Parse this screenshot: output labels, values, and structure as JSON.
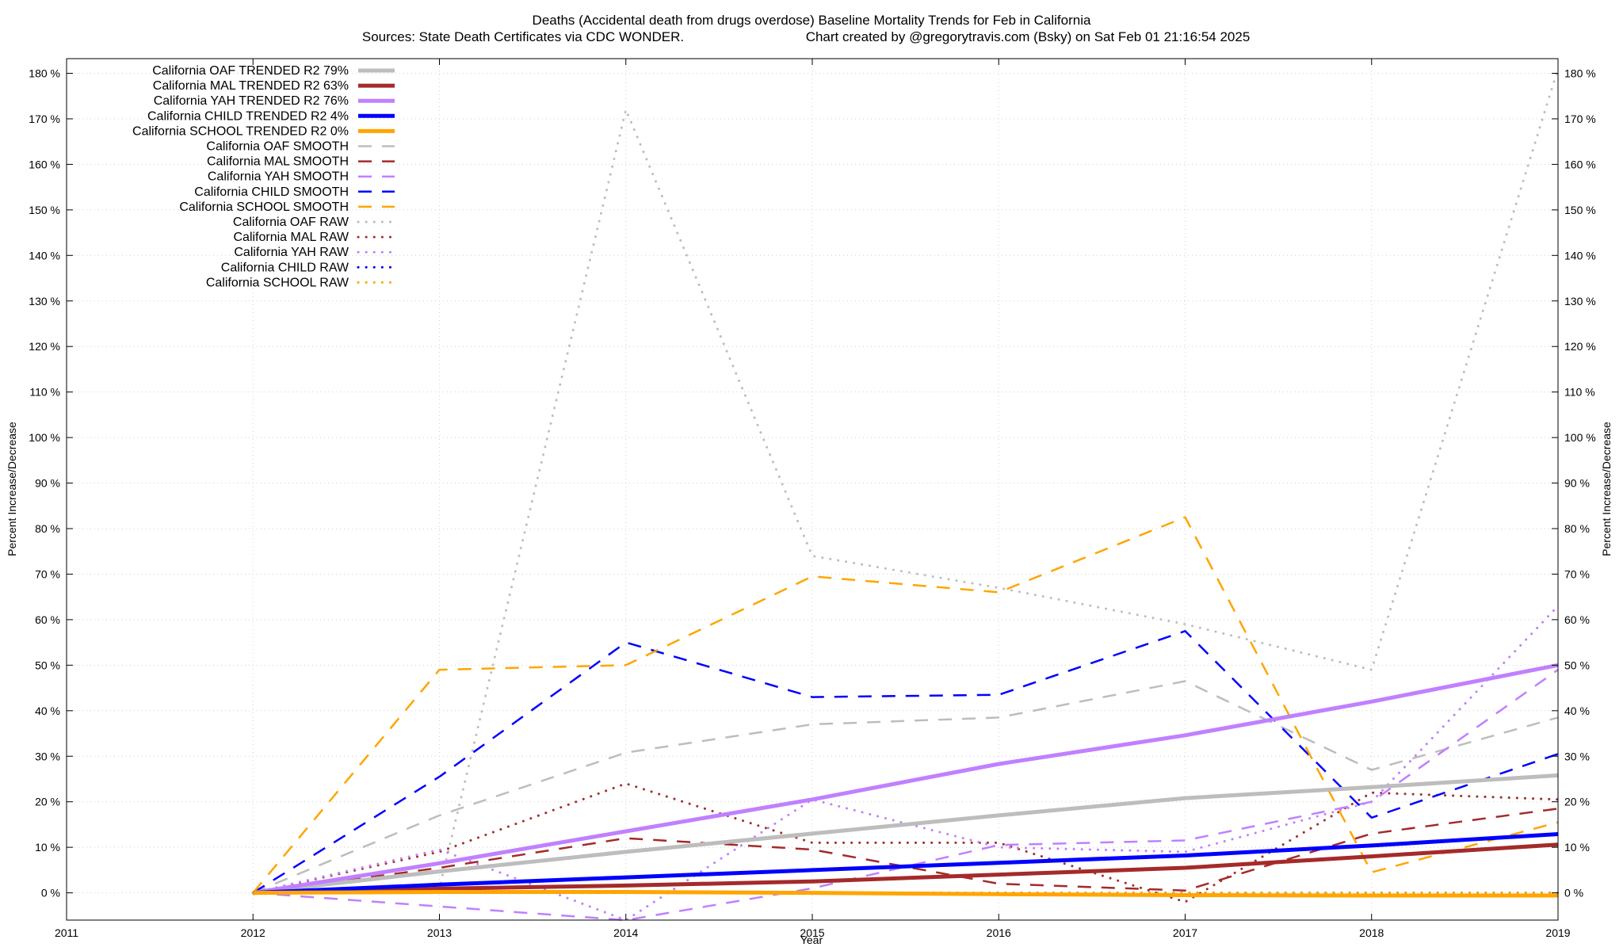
{
  "chart_data": {
    "type": "line",
    "title": "Deaths (Accidental death from drugs overdose)  Baseline Mortality Trends for Feb in California",
    "subtitle_left": "Sources: State Death Certificates via CDC WONDER.",
    "subtitle_right": "Chart created by @gregorytravis.com (Bsky) on Sat Feb 01 21:16:54 2025",
    "xlabel": "Year",
    "ylabel": "Percent Increase/Decrease",
    "y2label": "Percent Increase/Decrease",
    "xlim": [
      2011,
      2019
    ],
    "ylim": [
      -6,
      181
    ],
    "x_ticks": [
      "2011",
      "2012",
      "2013",
      "2014",
      "2015",
      "2016",
      "2017",
      "2018",
      "2019"
    ],
    "y_ticks": [
      "0 %",
      "10 %",
      "20 %",
      "30 %",
      "40 %",
      "50 %",
      "60 %",
      "70 %",
      "80 %",
      "90 %",
      "100 %",
      "110 %",
      "120 %",
      "130 %",
      "140 %",
      "150 %",
      "160 %",
      "170 %",
      "180 %"
    ],
    "y2_ticks": [
      "0 %",
      "10 %",
      "20 %",
      "30 %",
      "40 %",
      "50 %",
      "60 %",
      "70 %",
      "80 %",
      "90 %",
      "100 %",
      "110 %",
      "120 %",
      "130 %",
      "140 %",
      "150 %",
      "160 %",
      "170 %",
      "180 %"
    ],
    "grid": true,
    "legend_position": "top-left",
    "x": [
      2012,
      2013,
      2014,
      2015,
      2016,
      2017,
      2018,
      2019
    ],
    "series": [
      {
        "name": "California OAF TRENDED R2  79%",
        "style": "trend",
        "color": "#bdbdbd",
        "values": [
          0,
          4.7,
          9.0,
          13.0,
          17.0,
          20.8,
          23.2,
          25.8
        ]
      },
      {
        "name": "California MAL TRENDED R2  63%",
        "style": "trend",
        "color": "#a52a2a",
        "values": [
          0,
          0.9,
          1.6,
          2.5,
          4.0,
          5.5,
          8.0,
          10.6
        ]
      },
      {
        "name": "California YAH TRENDED R2  76%",
        "style": "trend",
        "color": "#c080ff",
        "values": [
          0,
          6.5,
          13.5,
          20.5,
          28.3,
          34.6,
          42.0,
          50.0
        ]
      },
      {
        "name": "California CHILD TRENDED R2  4%",
        "style": "trend",
        "color": "#0000ff",
        "values": [
          0,
          1.8,
          3.4,
          5.0,
          6.6,
          8.2,
          10.4,
          12.9
        ]
      },
      {
        "name": "California SCHOOL TRENDED R2  0%",
        "style": "trend",
        "color": "#ffa500",
        "values": [
          0,
          0.2,
          0.2,
          0.0,
          -0.3,
          -0.5,
          -0.6,
          -0.6
        ]
      },
      {
        "name": "California OAF SMOOTH",
        "style": "smooth",
        "color": "#bdbdbd",
        "values": [
          0,
          17.0,
          30.8,
          37.0,
          38.5,
          46.5,
          27.0,
          38.5
        ]
      },
      {
        "name": "California MAL SMOOTH",
        "style": "smooth",
        "color": "#a52a2a",
        "values": [
          0,
          5.5,
          12.0,
          9.5,
          2.0,
          0.5,
          13.0,
          18.5
        ]
      },
      {
        "name": "California YAH SMOOTH",
        "style": "smooth",
        "color": "#c080ff",
        "values": [
          0,
          -3.0,
          -6.0,
          1.0,
          10.5,
          11.5,
          20.0,
          49.0
        ]
      },
      {
        "name": "California CHILD SMOOTH",
        "style": "smooth",
        "color": "#0000ff",
        "values": [
          0,
          25.5,
          55.0,
          43.0,
          43.5,
          57.5,
          16.5,
          30.5
        ]
      },
      {
        "name": "California SCHOOL SMOOTH",
        "style": "smooth",
        "color": "#ffa500",
        "values": [
          0,
          49.0,
          50.0,
          69.5,
          66.0,
          82.5,
          4.5,
          15.5
        ]
      },
      {
        "name": "California OAF RAW",
        "style": "raw",
        "color": "#bdbdbd",
        "values": [
          0,
          1.0,
          172.0,
          74.0,
          67.0,
          59.0,
          49.0,
          181.0
        ]
      },
      {
        "name": "California MAL RAW",
        "style": "raw",
        "color": "#a52a2a",
        "values": [
          0,
          9.0,
          24.0,
          11.0,
          11.0,
          -2.0,
          22.0,
          20.5
        ]
      },
      {
        "name": "California YAH RAW",
        "style": "raw",
        "color": "#c080ff",
        "values": [
          0,
          9.5,
          -6.0,
          20.5,
          10.0,
          9.0,
          20.0,
          63.0
        ]
      },
      {
        "name": "California CHILD RAW",
        "style": "raw",
        "color": "#0000ff",
        "values": [
          0,
          0,
          0,
          0,
          0,
          0,
          0,
          0
        ]
      },
      {
        "name": "California SCHOOL RAW",
        "style": "raw",
        "color": "#ffa500",
        "values": [
          0,
          0,
          0,
          0,
          0,
          0,
          0,
          0
        ]
      }
    ]
  }
}
